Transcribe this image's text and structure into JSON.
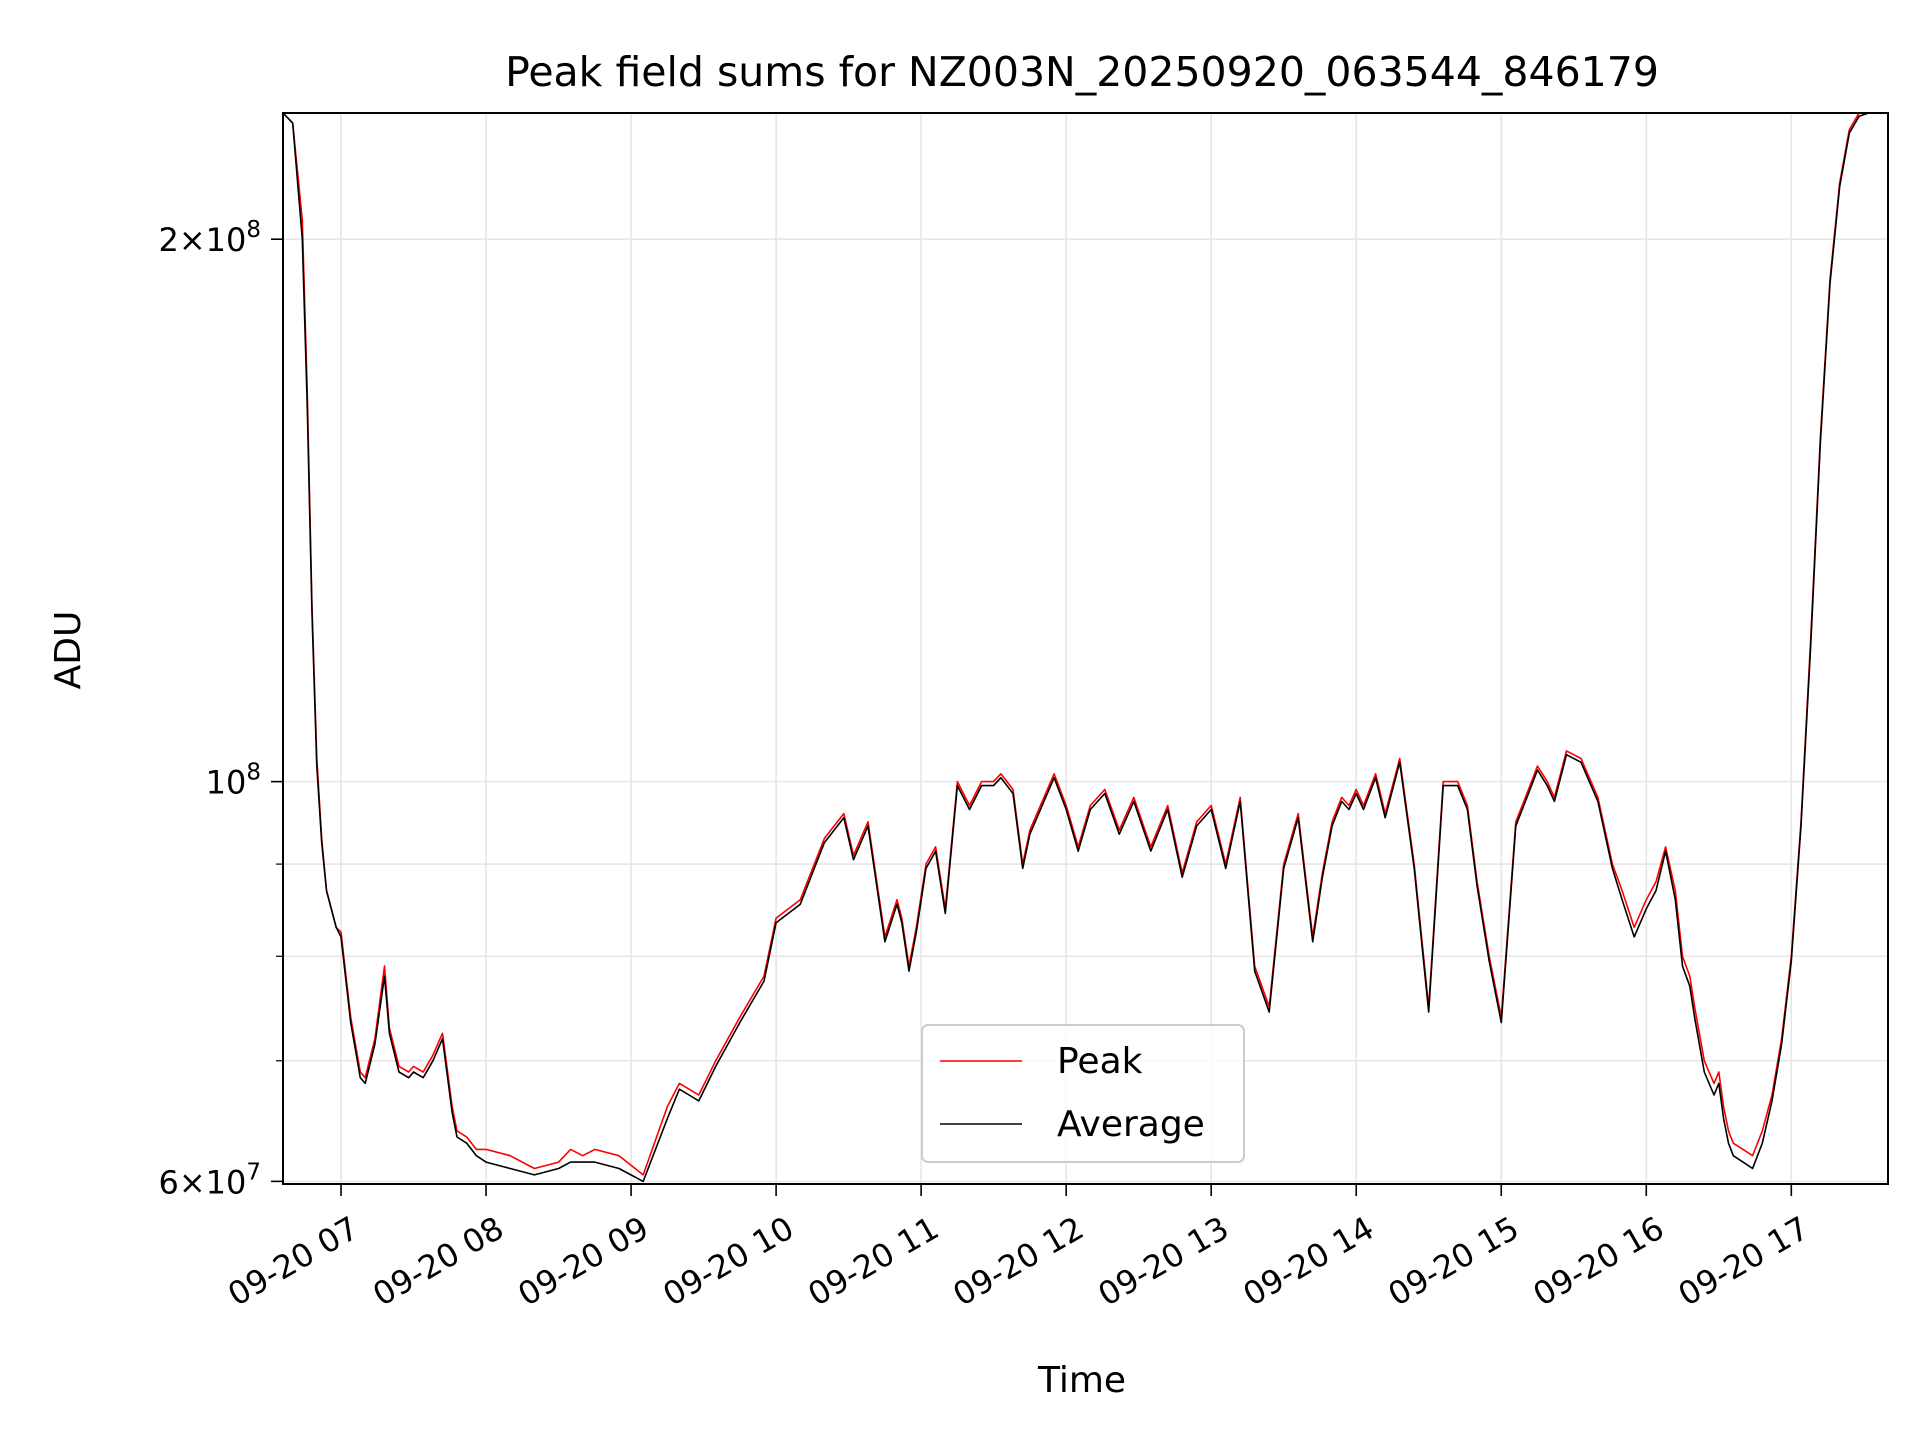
{
  "chart_data": {
    "type": "line",
    "title": "Peak field sums for NZ003N_20250920_063544_846179",
    "xlabel": "Time",
    "ylabel": "ADU",
    "y_scale": "log",
    "xlim": [
      "09-20 06:36",
      "09-20 17:40"
    ],
    "ylim": [
      59800000,
      235000000
    ],
    "x_ticks": [
      "09-20 07",
      "09-20 08",
      "09-20 09",
      "09-20 10",
      "09-20 11",
      "09-20 12",
      "09-20 13",
      "09-20 14",
      "09-20 15",
      "09-20 16",
      "09-20 17"
    ],
    "y_ticks": [
      {
        "value": 200000000,
        "mantissa": "2",
        "base": "10",
        "exponent": "8"
      },
      {
        "value": 100000000,
        "mantissa": "",
        "base": "10",
        "exponent": "8"
      },
      {
        "value": 60000000,
        "mantissa": "6",
        "base": "10",
        "exponent": "7"
      }
    ],
    "y_minor_ticks": [
      70000000,
      80000000,
      90000000
    ],
    "grid": true,
    "legend_position": "lower-center",
    "series": [
      {
        "name": "Peak",
        "color": "#ff0000",
        "x": [
          "06:36",
          "06:40",
          "06:44",
          "06:46",
          "06:48",
          "06:50",
          "06:52",
          "06:54",
          "06:56",
          "06:58",
          "07:00",
          "07:04",
          "07:08",
          "07:10",
          "07:14",
          "07:18",
          "07:20",
          "07:24",
          "07:28",
          "07:30",
          "07:34",
          "07:38",
          "07:42",
          "07:46",
          "07:48",
          "07:52",
          "07:56",
          "08:00",
          "08:10",
          "08:20",
          "08:30",
          "08:35",
          "08:40",
          "08:45",
          "08:55",
          "09:05",
          "09:15",
          "09:20",
          "09:24",
          "09:28",
          "09:35",
          "09:45",
          "09:55",
          "10:00",
          "10:10",
          "10:20",
          "10:28",
          "10:32",
          "10:38",
          "10:45",
          "10:50",
          "10:52",
          "10:55",
          "10:58",
          "11:02",
          "11:06",
          "11:10",
          "11:15",
          "11:20",
          "11:25",
          "11:30",
          "11:33",
          "11:38",
          "11:42",
          "11:45",
          "11:55",
          "12:00",
          "12:05",
          "12:10",
          "12:16",
          "12:22",
          "12:28",
          "12:35",
          "12:42",
          "12:48",
          "12:54",
          "13:00",
          "13:06",
          "13:12",
          "13:18",
          "13:24",
          "13:30",
          "13:36",
          "13:42",
          "13:46",
          "13:50",
          "13:54",
          "13:57",
          "14:00",
          "14:03",
          "14:08",
          "14:12",
          "14:18",
          "14:24",
          "14:30",
          "14:36",
          "14:42",
          "14:46",
          "14:50",
          "14:55",
          "15:00",
          "15:06",
          "15:10",
          "15:15",
          "15:19",
          "15:22",
          "15:27",
          "15:33",
          "15:40",
          "15:46",
          "15:50",
          "15:55",
          "16:00",
          "16:04",
          "16:08",
          "16:12",
          "16:15",
          "16:18",
          "16:20",
          "16:24",
          "16:28",
          "16:30",
          "16:32",
          "16:34",
          "16:36",
          "16:40",
          "16:44",
          "16:48",
          "16:52",
          "16:56",
          "17:00",
          "17:04",
          "17:08",
          "17:12",
          "17:16",
          "17:20",
          "17:24",
          "17:28",
          "17:32",
          "17:36",
          "17:40"
        ],
        "values": [
          235000000,
          232000000,
          205000000,
          165000000,
          125000000,
          103000000,
          93000000,
          87000000,
          85000000,
          83000000,
          82500000,
          74000000,
          69000000,
          68500000,
          72000000,
          79000000,
          73000000,
          69500000,
          69000000,
          69500000,
          69000000,
          70500000,
          72500000,
          66000000,
          64000000,
          63500000,
          62500000,
          62500000,
          62000000,
          61000000,
          61500000,
          62500000,
          62000000,
          62500000,
          62000000,
          60500000,
          66000000,
          68000000,
          67500000,
          67000000,
          70000000,
          74000000,
          78000000,
          84000000,
          86000000,
          93000000,
          96000000,
          91000000,
          95000000,
          82000000,
          86000000,
          84000000,
          79000000,
          83000000,
          90000000,
          92000000,
          85000000,
          100000000,
          97000000,
          100000000,
          100000000,
          101000000,
          99000000,
          90000000,
          94000000,
          101000000,
          97000000,
          92000000,
          97000000,
          99000000,
          94000000,
          98000000,
          92000000,
          97000000,
          89000000,
          95000000,
          97000000,
          90000000,
          98000000,
          79000000,
          75000000,
          90000000,
          96000000,
          82000000,
          89000000,
          95000000,
          98000000,
          97000000,
          99000000,
          97000000,
          101000000,
          96000000,
          103000000,
          90000000,
          75000000,
          100000000,
          100000000,
          97000000,
          88000000,
          80000000,
          74000000,
          95000000,
          98000000,
          102000000,
          100000000,
          98000000,
          104000000,
          103000000,
          98000000,
          90000000,
          87000000,
          83000000,
          86000000,
          88000000,
          92000000,
          87000000,
          80000000,
          78000000,
          75000000,
          70000000,
          68000000,
          69000000,
          66000000,
          64000000,
          63000000,
          62500000,
          62000000,
          64000000,
          67000000,
          72000000,
          80000000,
          95000000,
          120000000,
          155000000,
          190000000,
          215000000,
          230000000,
          235000000,
          235000000,
          235000000,
          235000000
        ]
      },
      {
        "name": "Average",
        "color": "#000000",
        "x": [
          "06:36",
          "06:40",
          "06:44",
          "06:46",
          "06:48",
          "06:50",
          "06:52",
          "06:54",
          "06:56",
          "06:58",
          "07:00",
          "07:04",
          "07:08",
          "07:10",
          "07:14",
          "07:18",
          "07:20",
          "07:24",
          "07:28",
          "07:30",
          "07:34",
          "07:38",
          "07:42",
          "07:46",
          "07:48",
          "07:52",
          "07:56",
          "08:00",
          "08:10",
          "08:20",
          "08:30",
          "08:35",
          "08:40",
          "08:45",
          "08:55",
          "09:05",
          "09:15",
          "09:20",
          "09:24",
          "09:28",
          "09:35",
          "09:45",
          "09:55",
          "10:00",
          "10:10",
          "10:20",
          "10:28",
          "10:32",
          "10:38",
          "10:45",
          "10:50",
          "10:52",
          "10:55",
          "10:58",
          "11:02",
          "11:06",
          "11:10",
          "11:15",
          "11:20",
          "11:25",
          "11:30",
          "11:33",
          "11:38",
          "11:42",
          "11:45",
          "11:55",
          "12:00",
          "12:05",
          "12:10",
          "12:16",
          "12:22",
          "12:28",
          "12:35",
          "12:42",
          "12:48",
          "12:54",
          "13:00",
          "13:06",
          "13:12",
          "13:18",
          "13:24",
          "13:30",
          "13:36",
          "13:42",
          "13:46",
          "13:50",
          "13:54",
          "13:57",
          "14:00",
          "14:03",
          "14:08",
          "14:12",
          "14:18",
          "14:24",
          "14:30",
          "14:36",
          "14:42",
          "14:46",
          "14:50",
          "14:55",
          "15:00",
          "15:06",
          "15:10",
          "15:15",
          "15:19",
          "15:22",
          "15:27",
          "15:33",
          "15:40",
          "15:46",
          "15:50",
          "15:55",
          "16:00",
          "16:04",
          "16:08",
          "16:12",
          "16:15",
          "16:18",
          "16:20",
          "16:24",
          "16:28",
          "16:30",
          "16:32",
          "16:34",
          "16:36",
          "16:40",
          "16:44",
          "16:48",
          "16:52",
          "16:56",
          "17:00",
          "17:04",
          "17:08",
          "17:12",
          "17:16",
          "17:20",
          "17:24",
          "17:28",
          "17:32",
          "17:36",
          "17:40"
        ],
        "values": [
          235000000,
          232000000,
          200000000,
          162000000,
          124000000,
          102000000,
          92500000,
          87000000,
          85000000,
          83000000,
          82000000,
          73500000,
          68500000,
          68000000,
          71500000,
          78000000,
          72500000,
          69000000,
          68500000,
          69000000,
          68500000,
          70000000,
          72000000,
          65500000,
          63500000,
          63000000,
          62000000,
          61500000,
          61000000,
          60500000,
          61000000,
          61500000,
          61500000,
          61500000,
          61000000,
          60000000,
          65000000,
          67500000,
          67000000,
          66500000,
          69500000,
          73500000,
          77500000,
          83500000,
          85500000,
          92500000,
          95500000,
          90500000,
          94500000,
          81500000,
          85500000,
          83500000,
          78500000,
          82500000,
          89500000,
          91500000,
          84500000,
          99500000,
          96500000,
          99500000,
          99500000,
          100500000,
          98500000,
          89500000,
          93500000,
          100500000,
          96500000,
          91500000,
          96500000,
          98500000,
          93500000,
          97500000,
          91500000,
          96500000,
          88500000,
          94500000,
          96500000,
          89500000,
          97500000,
          78500000,
          74500000,
          89500000,
          95500000,
          81500000,
          88500000,
          94500000,
          97500000,
          96500000,
          98500000,
          96500000,
          100500000,
          95500000,
          102500000,
          89500000,
          74500000,
          99500000,
          99500000,
          96500000,
          87500000,
          79500000,
          73500000,
          94500000,
          97500000,
          101500000,
          99500000,
          97500000,
          103500000,
          102500000,
          97500000,
          89500000,
          86000000,
          82000000,
          85000000,
          87000000,
          91500000,
          86000000,
          79000000,
          77000000,
          74000000,
          69000000,
          67000000,
          68000000,
          65000000,
          63000000,
          62000000,
          61500000,
          61000000,
          63000000,
          66500000,
          71500000,
          79500000,
          94500000,
          119000000,
          154000000,
          189000000,
          214000000,
          229000000,
          234000000,
          235000000,
          235000000,
          235000000
        ]
      }
    ]
  }
}
